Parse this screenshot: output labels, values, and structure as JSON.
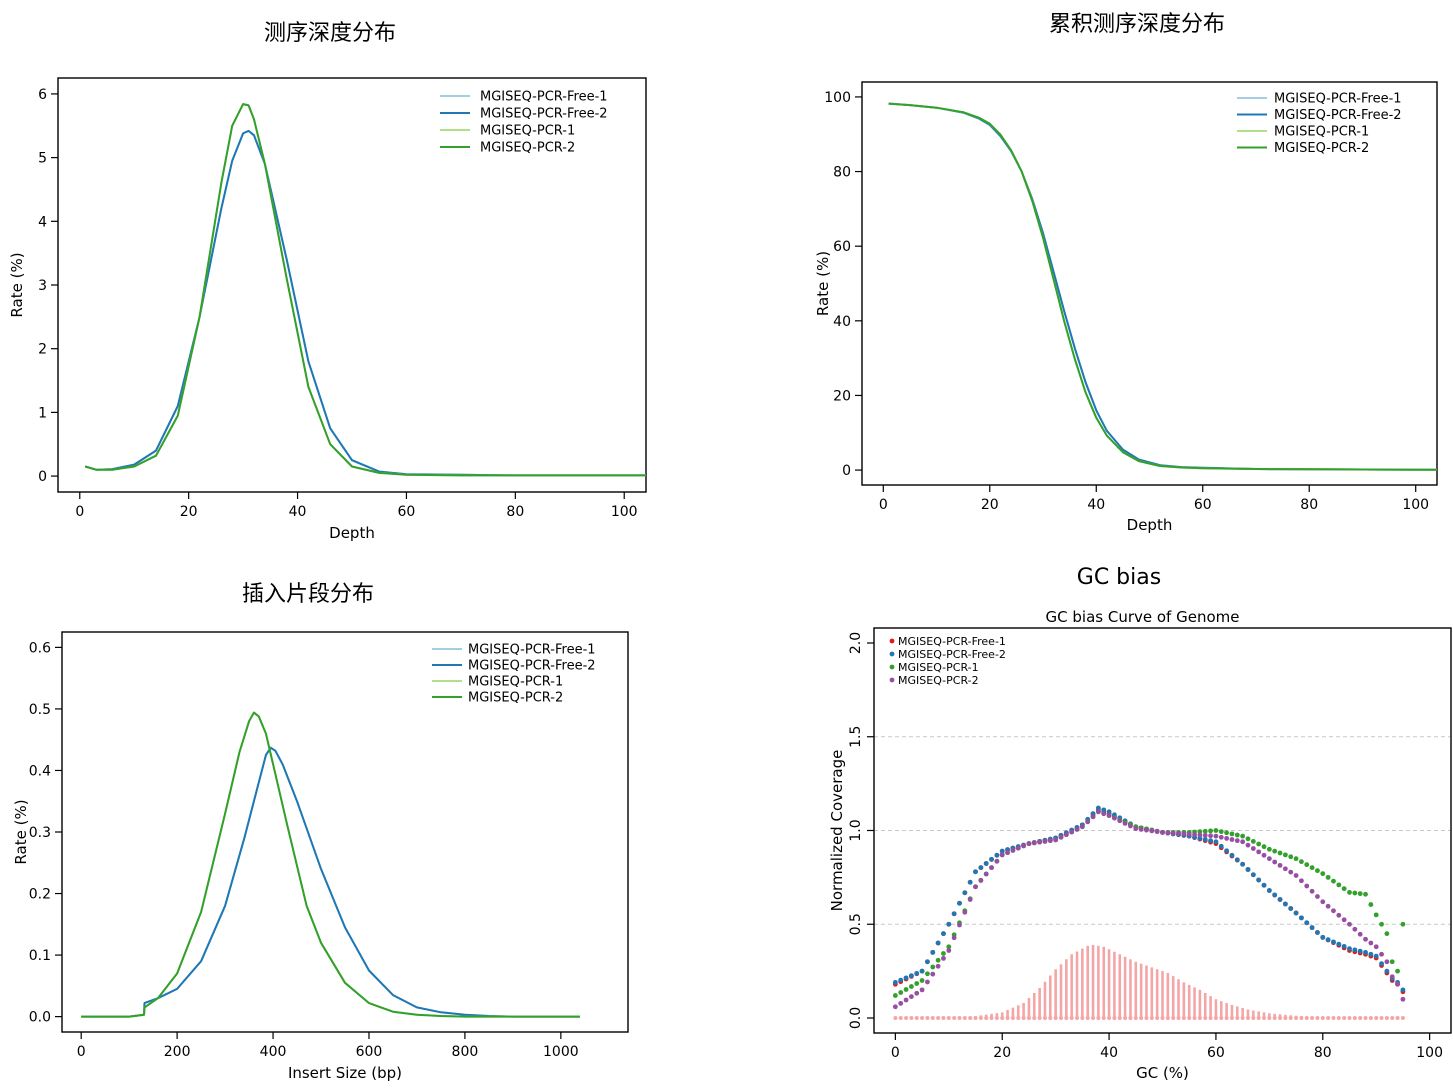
{
  "chart_data": [
    {
      "type": "line",
      "title": "测序深度分布",
      "xlabel": "Depth",
      "ylabel": "Rate (%)",
      "xlim": [
        -4,
        104
      ],
      "ylim": [
        -0.25,
        6.25
      ],
      "xticks": [
        0,
        20,
        40,
        60,
        80,
        100
      ],
      "yticks": [
        0,
        1,
        2,
        3,
        4,
        5,
        6
      ],
      "legend_position": "top-right",
      "legend": [
        "MGISEQ-PCR-Free-1",
        "MGISEQ-PCR-Free-2",
        "MGISEQ-PCR-1",
        "MGISEQ-PCR-2"
      ],
      "series": [
        {
          "name": "MGISEQ-PCR-Free-1",
          "color": "#a6cee3",
          "x": [
            1,
            3,
            6,
            10,
            14,
            18,
            22,
            26,
            28,
            30,
            31,
            32,
            34,
            38,
            42,
            46,
            50,
            55,
            60,
            70,
            80,
            90,
            104
          ],
          "y": [
            0.15,
            0.1,
            0.11,
            0.18,
            0.4,
            1.1,
            2.5,
            4.2,
            4.95,
            5.38,
            5.42,
            5.35,
            4.9,
            3.4,
            1.8,
            0.75,
            0.25,
            0.07,
            0.03,
            0.02,
            0.01,
            0.01,
            0.01
          ]
        },
        {
          "name": "MGISEQ-PCR-Free-2",
          "color": "#1f78b4",
          "x": [
            1,
            3,
            6,
            10,
            14,
            18,
            22,
            26,
            28,
            30,
            31,
            32,
            34,
            38,
            42,
            46,
            50,
            55,
            60,
            70,
            80,
            90,
            104
          ],
          "y": [
            0.15,
            0.1,
            0.11,
            0.18,
            0.4,
            1.1,
            2.5,
            4.2,
            4.95,
            5.38,
            5.42,
            5.35,
            4.9,
            3.4,
            1.8,
            0.75,
            0.25,
            0.07,
            0.03,
            0.02,
            0.01,
            0.01,
            0.01
          ]
        },
        {
          "name": "MGISEQ-PCR-1",
          "color": "#b2df8a",
          "x": [
            1,
            3,
            6,
            10,
            14,
            18,
            22,
            26,
            28,
            30,
            31,
            32,
            34,
            38,
            42,
            46,
            50,
            55,
            60,
            70,
            80,
            90,
            104
          ],
          "y": [
            0.15,
            0.1,
            0.1,
            0.15,
            0.32,
            0.95,
            2.5,
            4.6,
            5.5,
            5.84,
            5.82,
            5.6,
            4.9,
            3.1,
            1.4,
            0.5,
            0.15,
            0.05,
            0.02,
            0.01,
            0.01,
            0.01,
            0.01
          ]
        },
        {
          "name": "MGISEQ-PCR-2",
          "color": "#33a02c",
          "x": [
            1,
            3,
            6,
            10,
            14,
            18,
            22,
            26,
            28,
            30,
            31,
            32,
            34,
            38,
            42,
            46,
            50,
            55,
            60,
            70,
            80,
            90,
            104
          ],
          "y": [
            0.15,
            0.1,
            0.1,
            0.15,
            0.32,
            0.95,
            2.5,
            4.6,
            5.5,
            5.84,
            5.82,
            5.6,
            4.9,
            3.1,
            1.4,
            0.5,
            0.15,
            0.05,
            0.02,
            0.01,
            0.01,
            0.01,
            0.01
          ]
        }
      ]
    },
    {
      "type": "line",
      "title": "累积测序深度分布",
      "xlabel": "Depth",
      "ylabel": "Rate (%)",
      "xlim": [
        -4,
        104
      ],
      "ylim": [
        -4,
        104
      ],
      "xticks": [
        0,
        20,
        40,
        60,
        80,
        100
      ],
      "yticks": [
        0,
        20,
        40,
        60,
        80,
        100
      ],
      "legend_position": "top-right",
      "legend": [
        "MGISEQ-PCR-Free-1",
        "MGISEQ-PCR-Free-2",
        "MGISEQ-PCR-1",
        "MGISEQ-PCR-2"
      ],
      "series": [
        {
          "name": "MGISEQ-PCR-Free-1",
          "color": "#a6cee3",
          "x": [
            1,
            5,
            10,
            15,
            18,
            20,
            22,
            24,
            26,
            28,
            30,
            32,
            34,
            36,
            38,
            40,
            42,
            45,
            48,
            52,
            56,
            60,
            70,
            80,
            90,
            104
          ],
          "y": [
            98.2,
            97.8,
            97.1,
            95.8,
            94.2,
            92.5,
            89.5,
            85.5,
            80.0,
            72.5,
            63.5,
            53.0,
            42.5,
            32.5,
            23.5,
            16.0,
            10.5,
            5.5,
            2.8,
            1.3,
            0.8,
            0.6,
            0.3,
            0.2,
            0.15,
            0.1
          ]
        },
        {
          "name": "MGISEQ-PCR-Free-2",
          "color": "#1f78b4",
          "x": [
            1,
            5,
            10,
            15,
            18,
            20,
            22,
            24,
            26,
            28,
            30,
            32,
            34,
            36,
            38,
            40,
            42,
            45,
            48,
            52,
            56,
            60,
            70,
            80,
            90,
            104
          ],
          "y": [
            98.2,
            97.8,
            97.1,
            95.8,
            94.2,
            92.5,
            89.5,
            85.5,
            80.0,
            72.5,
            63.5,
            53.0,
            42.5,
            32.5,
            23.5,
            16.0,
            10.5,
            5.5,
            2.8,
            1.3,
            0.8,
            0.6,
            0.3,
            0.2,
            0.15,
            0.1
          ]
        },
        {
          "name": "MGISEQ-PCR-1",
          "color": "#b2df8a",
          "x": [
            1,
            5,
            10,
            15,
            18,
            20,
            22,
            24,
            26,
            28,
            30,
            32,
            34,
            36,
            38,
            40,
            42,
            45,
            48,
            52,
            56,
            60,
            70,
            80,
            90,
            104
          ],
          "y": [
            98.2,
            97.8,
            97.1,
            95.9,
            94.4,
            92.8,
            89.9,
            85.7,
            80.0,
            72.0,
            62.3,
            51.0,
            39.8,
            29.6,
            20.8,
            14.0,
            9.2,
            4.8,
            2.4,
            1.1,
            0.7,
            0.5,
            0.3,
            0.2,
            0.15,
            0.1
          ]
        },
        {
          "name": "MGISEQ-PCR-2",
          "color": "#33a02c",
          "x": [
            1,
            5,
            10,
            15,
            18,
            20,
            22,
            24,
            26,
            28,
            30,
            32,
            34,
            36,
            38,
            40,
            42,
            45,
            48,
            52,
            56,
            60,
            70,
            80,
            90,
            104
          ],
          "y": [
            98.2,
            97.8,
            97.1,
            95.9,
            94.4,
            92.8,
            89.9,
            85.7,
            80.0,
            72.0,
            62.3,
            51.0,
            39.8,
            29.6,
            20.8,
            14.0,
            9.2,
            4.8,
            2.4,
            1.1,
            0.7,
            0.5,
            0.3,
            0.2,
            0.15,
            0.1
          ]
        }
      ]
    },
    {
      "type": "line",
      "title": "插入片段分布",
      "xlabel": "Insert Size (bp)",
      "ylabel": "Rate (%)",
      "xlim": [
        -40,
        1140
      ],
      "ylim": [
        -0.025,
        0.625
      ],
      "xticks": [
        0,
        200,
        400,
        600,
        800,
        1000
      ],
      "yticks": [
        0.0,
        0.1,
        0.2,
        0.3,
        0.4,
        0.5,
        0.6
      ],
      "legend_position": "top-right",
      "legend": [
        "MGISEQ-PCR-Free-1",
        "MGISEQ-PCR-Free-2",
        "MGISEQ-PCR-1",
        "MGISEQ-PCR-2"
      ],
      "series": [
        {
          "name": "MGISEQ-PCR-Free-1",
          "color": "#a6cee3",
          "x": [
            0,
            100,
            131,
            132,
            160,
            200,
            250,
            300,
            340,
            370,
            385,
            395,
            405,
            420,
            450,
            500,
            550,
            600,
            650,
            700,
            750,
            800,
            850,
            900,
            1040
          ],
          "y": [
            0,
            0,
            0.003,
            0.022,
            0.03,
            0.045,
            0.09,
            0.18,
            0.29,
            0.38,
            0.425,
            0.437,
            0.432,
            0.41,
            0.35,
            0.24,
            0.145,
            0.075,
            0.035,
            0.015,
            0.007,
            0.003,
            0.001,
            0.0,
            0.0
          ]
        },
        {
          "name": "MGISEQ-PCR-Free-2",
          "color": "#1f78b4",
          "x": [
            0,
            100,
            131,
            132,
            160,
            200,
            250,
            300,
            340,
            370,
            385,
            395,
            405,
            420,
            450,
            500,
            550,
            600,
            650,
            700,
            750,
            800,
            850,
            900,
            1040
          ],
          "y": [
            0,
            0,
            0.003,
            0.022,
            0.03,
            0.045,
            0.09,
            0.18,
            0.29,
            0.38,
            0.425,
            0.437,
            0.432,
            0.41,
            0.35,
            0.24,
            0.145,
            0.075,
            0.035,
            0.015,
            0.007,
            0.003,
            0.001,
            0.0,
            0.0
          ]
        },
        {
          "name": "MGISEQ-PCR-1",
          "color": "#b2df8a",
          "x": [
            0,
            100,
            131,
            132,
            160,
            200,
            250,
            300,
            330,
            350,
            360,
            370,
            385,
            400,
            430,
            470,
            500,
            550,
            600,
            650,
            700,
            750,
            800,
            900,
            1040
          ],
          "y": [
            0,
            0,
            0.003,
            0.015,
            0.03,
            0.07,
            0.17,
            0.33,
            0.43,
            0.48,
            0.494,
            0.488,
            0.46,
            0.41,
            0.31,
            0.18,
            0.12,
            0.055,
            0.022,
            0.008,
            0.003,
            0.001,
            0.0,
            0.0,
            0.0
          ]
        },
        {
          "name": "MGISEQ-PCR-2",
          "color": "#33a02c",
          "x": [
            0,
            100,
            131,
            132,
            160,
            200,
            250,
            300,
            330,
            350,
            360,
            370,
            385,
            400,
            430,
            470,
            500,
            550,
            600,
            650,
            700,
            750,
            800,
            900,
            1040
          ],
          "y": [
            0,
            0,
            0.003,
            0.015,
            0.03,
            0.07,
            0.17,
            0.33,
            0.43,
            0.48,
            0.494,
            0.488,
            0.46,
            0.41,
            0.31,
            0.18,
            0.12,
            0.055,
            0.022,
            0.008,
            0.003,
            0.001,
            0.0,
            0.0,
            0.0
          ]
        }
      ]
    },
    {
      "type": "scatter",
      "title": "GC bias",
      "subtitle": "GC bias Curve of Genome",
      "xlabel": "GC (%)",
      "ylabel": "Normalized Coverage",
      "xlim": [
        -4,
        104
      ],
      "ylim": [
        -0.08,
        2.08
      ],
      "xticks": [
        0,
        20,
        40,
        60,
        80,
        100
      ],
      "yticks": [
        0.0,
        0.5,
        1.0,
        1.5,
        2.0
      ],
      "ytick_labels": [
        "0.0",
        "0.5",
        "1.0",
        "1.5",
        "2.0"
      ],
      "grid_lines_y": [
        0.5,
        1.0,
        1.5
      ],
      "legend_position": "top-left",
      "legend": [
        "MGISEQ-PCR-Free-1",
        "MGISEQ-PCR-Free-2",
        "MGISEQ-PCR-1",
        "MGISEQ-PCR-2"
      ],
      "series": [
        {
          "name": "MGISEQ-PCR-Free-1",
          "color": "#e31a1c",
          "x": [
            0,
            5,
            10,
            15,
            20,
            25,
            30,
            35,
            38,
            40,
            45,
            50,
            55,
            60,
            65,
            70,
            75,
            80,
            85,
            88,
            90,
            92,
            93,
            94,
            95
          ],
          "y": [
            0.18,
            0.25,
            0.5,
            0.78,
            0.89,
            0.93,
            0.96,
            1.03,
            1.11,
            1.09,
            1.02,
            0.99,
            0.97,
            0.93,
            0.82,
            0.68,
            0.56,
            0.43,
            0.36,
            0.34,
            0.32,
            0.24,
            0.2,
            0.18,
            0.14
          ]
        },
        {
          "name": "MGISEQ-PCR-Free-2",
          "color": "#1f78b4",
          "x": [
            0,
            5,
            10,
            15,
            20,
            25,
            30,
            35,
            38,
            40,
            45,
            50,
            55,
            60,
            65,
            70,
            75,
            80,
            85,
            88,
            90,
            92,
            93,
            94,
            95
          ],
          "y": [
            0.19,
            0.25,
            0.5,
            0.78,
            0.89,
            0.93,
            0.96,
            1.03,
            1.12,
            1.1,
            1.02,
            0.99,
            0.97,
            0.94,
            0.82,
            0.68,
            0.56,
            0.43,
            0.37,
            0.35,
            0.33,
            0.25,
            0.21,
            0.19,
            0.15
          ]
        },
        {
          "name": "MGISEQ-PCR-1",
          "color": "#33a02c",
          "x": [
            0,
            5,
            10,
            15,
            20,
            25,
            30,
            35,
            38,
            40,
            45,
            50,
            55,
            60,
            65,
            70,
            75,
            80,
            85,
            88,
            90,
            92,
            93,
            94,
            95
          ],
          "y": [
            0.12,
            0.2,
            0.38,
            0.7,
            0.87,
            0.93,
            0.95,
            1.02,
            1.1,
            1.08,
            1.02,
            0.99,
            0.99,
            1.0,
            0.97,
            0.9,
            0.85,
            0.77,
            0.67,
            0.66,
            0.55,
            0.45,
            0.3,
            0.25,
            0.5
          ]
        },
        {
          "name": "MGISEQ-PCR-2",
          "color": "#984ea3",
          "x": [
            0,
            5,
            10,
            15,
            20,
            25,
            30,
            35,
            38,
            40,
            45,
            50,
            55,
            60,
            65,
            70,
            75,
            80,
            85,
            88,
            90,
            92,
            93,
            94,
            95
          ],
          "y": [
            0.06,
            0.15,
            0.36,
            0.7,
            0.87,
            0.93,
            0.95,
            1.02,
            1.1,
            1.08,
            1.01,
            0.99,
            0.98,
            0.97,
            0.94,
            0.85,
            0.76,
            0.62,
            0.5,
            0.42,
            0.38,
            0.3,
            0.22,
            0.18,
            0.1
          ]
        }
      ],
      "histogram": {
        "color": "#f4a6a6",
        "x": [
          0,
          5,
          10,
          15,
          20,
          24,
          27,
          30,
          33,
          36,
          37,
          39,
          42,
          45,
          48,
          51,
          54,
          57,
          60,
          63,
          66,
          70,
          75,
          80,
          85,
          90,
          95
        ],
        "y": [
          0.0,
          0.0,
          0.003,
          0.01,
          0.03,
          0.08,
          0.16,
          0.26,
          0.34,
          0.385,
          0.39,
          0.38,
          0.34,
          0.3,
          0.27,
          0.24,
          0.19,
          0.15,
          0.1,
          0.07,
          0.045,
          0.025,
          0.012,
          0.005,
          0.002,
          0.0,
          0.0
        ]
      }
    }
  ]
}
